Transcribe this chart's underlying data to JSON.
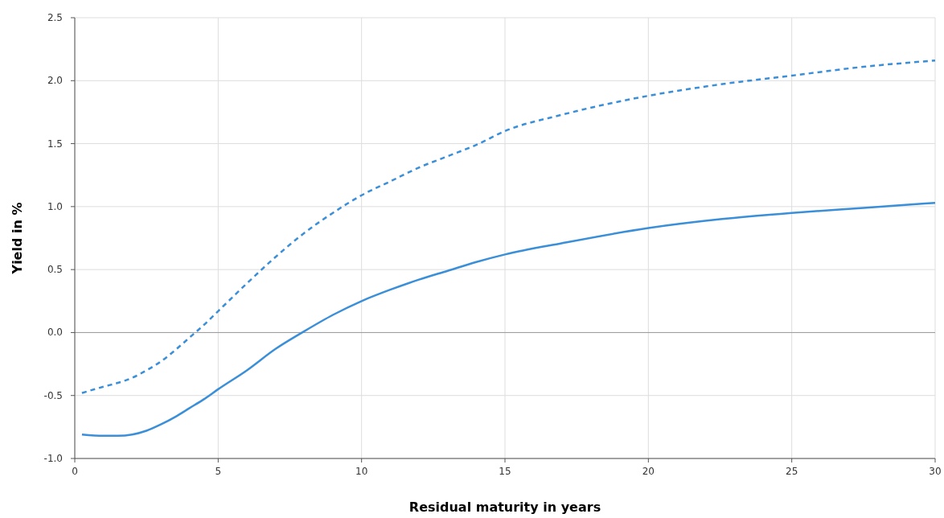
{
  "chart_data": {
    "type": "line",
    "xlabel": "Residual maturity in years",
    "ylabel": "Yield in %",
    "xlim": [
      0,
      30
    ],
    "xticks": [
      0,
      5,
      10,
      15,
      20,
      25,
      30
    ],
    "ylim": [
      -1.0,
      2.5
    ],
    "yticks": [
      {
        "value": -1,
        "label": "-1.0"
      },
      -0.5,
      {
        "value": 0,
        "label": "0.0"
      },
      0.5,
      {
        "value": 1,
        "label": "1.0"
      },
      1.5,
      {
        "value": 2,
        "label": "2.0"
      },
      2.5
    ],
    "grid": true,
    "marker": "none",
    "ref_lines": [
      {
        "axis": "y",
        "value": 0,
        "color": "#999999"
      }
    ],
    "series": [
      {
        "color": "#3a8fd8",
        "line_style": "solid",
        "x": [
          0.25,
          1,
          1.5,
          2,
          2.5,
          3,
          3.5,
          4,
          4.5,
          5,
          6,
          7,
          8,
          9,
          10,
          11,
          12,
          13,
          14,
          15,
          17,
          20,
          22.5,
          25,
          27.5,
          30
        ],
        "values": [
          -0.81,
          -0.82,
          -0.82,
          -0.81,
          -0.78,
          -0.73,
          -0.67,
          -0.6,
          -0.53,
          -0.45,
          -0.3,
          -0.13,
          0.01,
          0.14,
          0.25,
          0.34,
          0.42,
          0.49,
          0.56,
          0.62,
          0.71,
          0.83,
          0.9,
          0.95,
          0.99,
          1.03
        ]
      },
      {
        "color": "#3a8fd8",
        "line_style": "dashed",
        "x": [
          0.25,
          1,
          1.5,
          2,
          2.5,
          3,
          3.5,
          4,
          4.5,
          5,
          6,
          7,
          8,
          9,
          10,
          11,
          12,
          13,
          14,
          15,
          17,
          20,
          22.5,
          25,
          27.5,
          30
        ],
        "values": [
          -0.48,
          -0.43,
          -0.4,
          -0.36,
          -0.3,
          -0.23,
          -0.14,
          -0.04,
          0.06,
          0.17,
          0.39,
          0.6,
          0.79,
          0.95,
          1.09,
          1.2,
          1.31,
          1.4,
          1.49,
          1.6,
          1.73,
          1.88,
          1.97,
          2.04,
          2.11,
          2.16
        ]
      }
    ]
  }
}
